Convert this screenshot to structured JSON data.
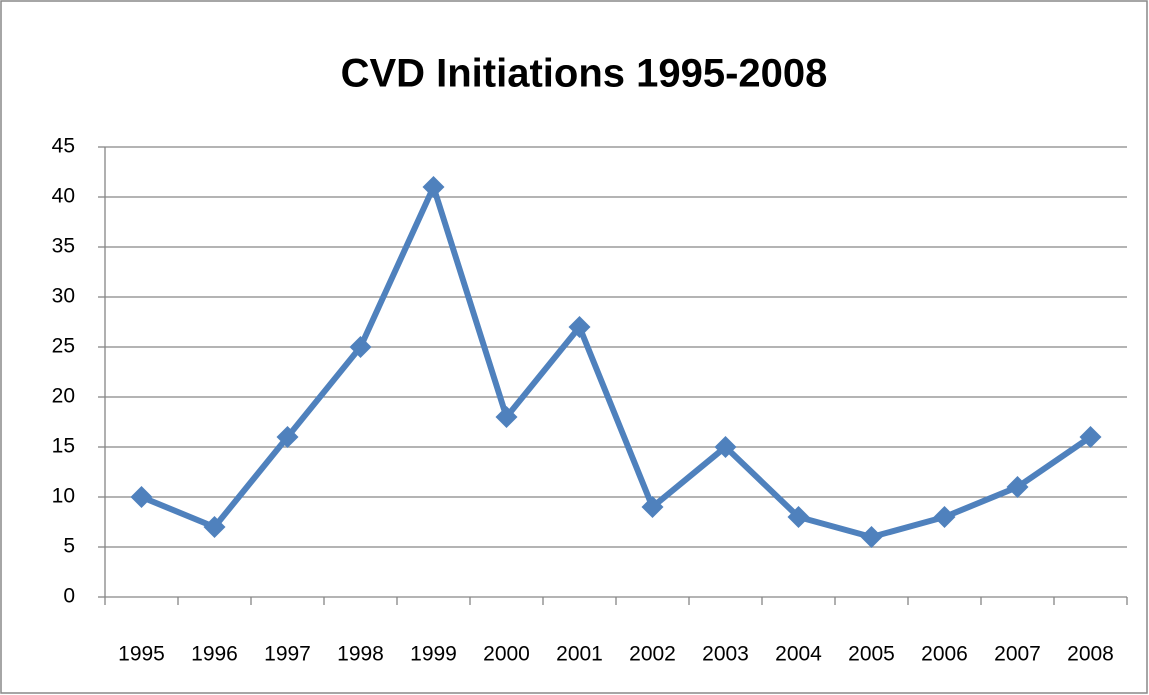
{
  "chart_data": {
    "type": "line",
    "title": "CVD Initiations 1995-2008",
    "categories": [
      "1995",
      "1996",
      "1997",
      "1998",
      "1999",
      "2000",
      "2001",
      "2002",
      "2003",
      "2004",
      "2005",
      "2006",
      "2007",
      "2008"
    ],
    "values": [
      10,
      7,
      16,
      25,
      41,
      18,
      27,
      9,
      15,
      8,
      6,
      8,
      11,
      16
    ],
    "color": "#4f81bd",
    "ylim": [
      0,
      45
    ],
    "yticks": [
      0,
      5,
      10,
      15,
      20,
      25,
      30,
      35,
      40,
      45
    ],
    "grid": true
  }
}
